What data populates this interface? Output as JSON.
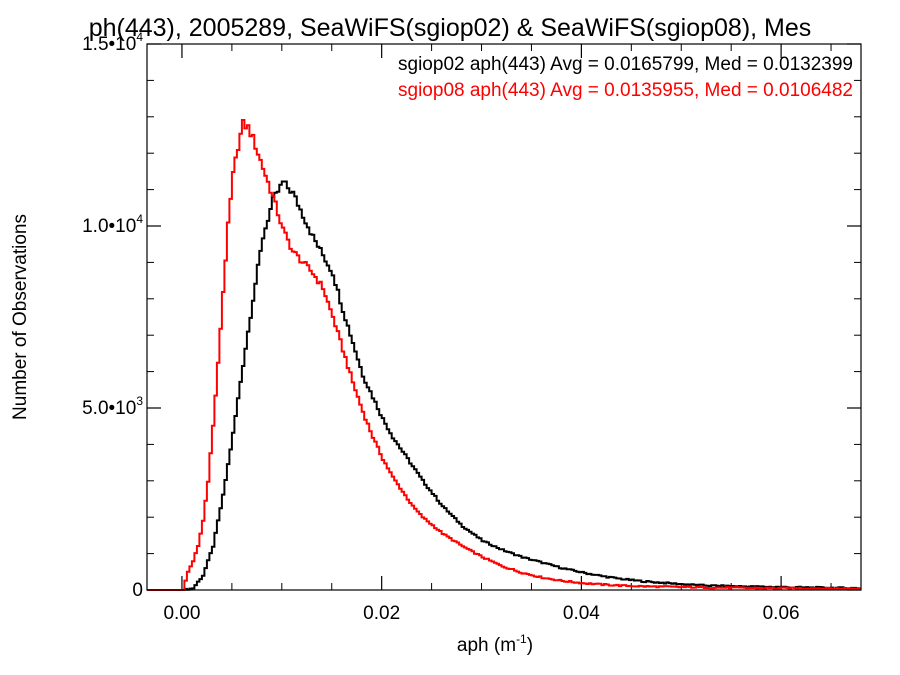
{
  "chart_data": {
    "type": "line",
    "title": "ph(443), 2005289, SeaWiFS(sgiop02) & SeaWiFS(sgiop08), Mes",
    "xlabel": "aph (m",
    "xlabel_sup": "-1",
    "xlabel_close": ")",
    "ylabel": "Number of Observations",
    "xlim": [
      -0.0035,
      0.068
    ],
    "ylim": [
      0,
      15000
    ],
    "xticks": [
      {
        "value": 0.0,
        "label": "0.00"
      },
      {
        "value": 0.02,
        "label": "0.02"
      },
      {
        "value": 0.04,
        "label": "0.04"
      },
      {
        "value": 0.06,
        "label": "0.06"
      }
    ],
    "yticks": [
      {
        "value": 0,
        "mant": "0",
        "exp": ""
      },
      {
        "value": 5000,
        "mant": "5.0•10",
        "exp": "3"
      },
      {
        "value": 10000,
        "mant": "1.0•10",
        "exp": "4"
      },
      {
        "value": 15000,
        "mant": "1.5•10",
        "exp": "4"
      }
    ],
    "legend_position": "top-right",
    "series": [
      {
        "name": "sgiop02 aph(443) Avg = 0.0165799, Med = 0.0132399",
        "color": "#000000",
        "points": [
          [
            0.0,
            0
          ],
          [
            0.001,
            50
          ],
          [
            0.002,
            400
          ],
          [
            0.003,
            1200
          ],
          [
            0.004,
            2600
          ],
          [
            0.005,
            4300
          ],
          [
            0.006,
            6200
          ],
          [
            0.007,
            8000
          ],
          [
            0.008,
            9700
          ],
          [
            0.009,
            10700
          ],
          [
            0.01,
            11200
          ],
          [
            0.011,
            10900
          ],
          [
            0.012,
            10300
          ],
          [
            0.013,
            9700
          ],
          [
            0.014,
            9200
          ],
          [
            0.015,
            8700
          ],
          [
            0.016,
            7700
          ],
          [
            0.017,
            6800
          ],
          [
            0.018,
            5900
          ],
          [
            0.019,
            5300
          ],
          [
            0.02,
            4700
          ],
          [
            0.021,
            4200
          ],
          [
            0.022,
            3800
          ],
          [
            0.023,
            3400
          ],
          [
            0.024,
            3000
          ],
          [
            0.026,
            2300
          ],
          [
            0.028,
            1750
          ],
          [
            0.03,
            1350
          ],
          [
            0.032,
            1100
          ],
          [
            0.034,
            900
          ],
          [
            0.036,
            750
          ],
          [
            0.038,
            600
          ],
          [
            0.04,
            480
          ],
          [
            0.042,
            380
          ],
          [
            0.044,
            300
          ],
          [
            0.046,
            240
          ],
          [
            0.048,
            200
          ],
          [
            0.05,
            160
          ],
          [
            0.052,
            130
          ],
          [
            0.054,
            110
          ],
          [
            0.056,
            100
          ],
          [
            0.058,
            90
          ],
          [
            0.06,
            80
          ],
          [
            0.062,
            70
          ],
          [
            0.065,
            60
          ],
          [
            0.068,
            50
          ]
        ]
      },
      {
        "name": "sgiop08 aph(443) Avg = 0.0135955, Med = 0.0106482",
        "color": "#ff0000",
        "points": [
          [
            0.0,
            0
          ],
          [
            0.0005,
            500
          ],
          [
            0.001,
            800
          ],
          [
            0.0015,
            1200
          ],
          [
            0.002,
            1900
          ],
          [
            0.0025,
            3000
          ],
          [
            0.003,
            4500
          ],
          [
            0.0035,
            6200
          ],
          [
            0.004,
            8200
          ],
          [
            0.0045,
            10000
          ],
          [
            0.005,
            11400
          ],
          [
            0.0055,
            12200
          ],
          [
            0.006,
            12800
          ],
          [
            0.0065,
            12700
          ],
          [
            0.007,
            12400
          ],
          [
            0.0075,
            12000
          ],
          [
            0.008,
            11600
          ],
          [
            0.009,
            10800
          ],
          [
            0.01,
            9900
          ],
          [
            0.011,
            9300
          ],
          [
            0.012,
            9000
          ],
          [
            0.013,
            8700
          ],
          [
            0.014,
            8300
          ],
          [
            0.015,
            7500
          ],
          [
            0.016,
            6600
          ],
          [
            0.017,
            5700
          ],
          [
            0.018,
            4900
          ],
          [
            0.019,
            4200
          ],
          [
            0.02,
            3600
          ],
          [
            0.021,
            3100
          ],
          [
            0.022,
            2700
          ],
          [
            0.023,
            2300
          ],
          [
            0.024,
            2000
          ],
          [
            0.026,
            1550
          ],
          [
            0.028,
            1200
          ],
          [
            0.03,
            900
          ],
          [
            0.032,
            650
          ],
          [
            0.034,
            470
          ],
          [
            0.036,
            340
          ],
          [
            0.038,
            250
          ],
          [
            0.04,
            190
          ],
          [
            0.042,
            150
          ],
          [
            0.044,
            120
          ],
          [
            0.046,
            100
          ],
          [
            0.05,
            80
          ],
          [
            0.055,
            60
          ],
          [
            0.06,
            50
          ],
          [
            0.068,
            40
          ]
        ]
      }
    ]
  }
}
